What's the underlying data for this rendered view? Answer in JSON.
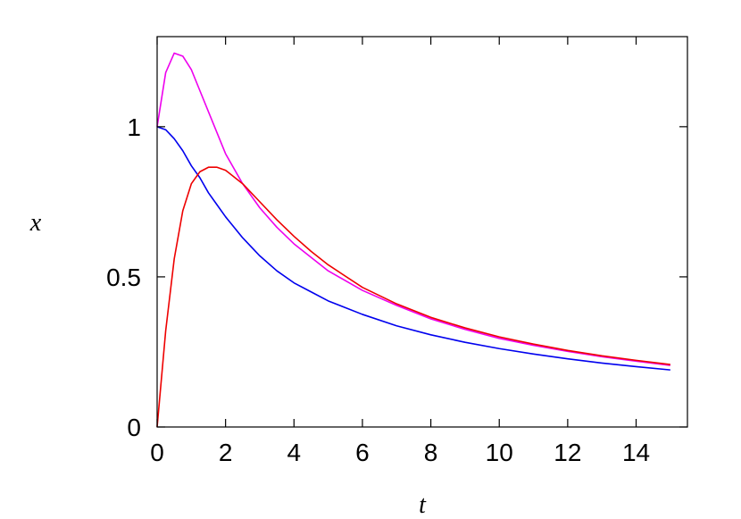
{
  "chart_data": {
    "type": "line",
    "title": "",
    "xlabel": "t",
    "ylabel": "x",
    "xlim": [
      0,
      15.5
    ],
    "ylim": [
      0,
      1.3
    ],
    "grid": false,
    "legend": "none",
    "x_ticks": [
      "0",
      "2",
      "4",
      "6",
      "8",
      "10",
      "12",
      "14"
    ],
    "y_ticks": [
      "0",
      "0.5",
      "1"
    ],
    "x_tick_values": [
      0,
      2,
      4,
      6,
      8,
      10,
      12,
      14
    ],
    "y_tick_values": [
      0,
      0.5,
      1
    ],
    "x": [
      0,
      0.25,
      0.5,
      0.75,
      1,
      1.25,
      1.5,
      1.75,
      2,
      2.5,
      3,
      3.5,
      4,
      4.5,
      5,
      6,
      7,
      8,
      9,
      10,
      11,
      12,
      13,
      14,
      15
    ],
    "series": [
      {
        "color": "#0000ee",
        "values": [
          1.0,
          0.99,
          0.96,
          0.92,
          0.87,
          0.83,
          0.78,
          0.74,
          0.7,
          0.63,
          0.57,
          0.52,
          0.48,
          0.45,
          0.42,
          0.375,
          0.337,
          0.307,
          0.282,
          0.261,
          0.243,
          0.227,
          0.213,
          0.201,
          0.19
        ]
      },
      {
        "color": "#ee00ee",
        "values": [
          1.0,
          1.18,
          1.245,
          1.235,
          1.19,
          1.12,
          1.05,
          0.98,
          0.91,
          0.81,
          0.73,
          0.665,
          0.61,
          0.565,
          0.52,
          0.455,
          0.405,
          0.36,
          0.325,
          0.295,
          0.272,
          0.252,
          0.234,
          0.219,
          0.205
        ]
      },
      {
        "color": "#ee0000",
        "values": [
          0.0,
          0.32,
          0.56,
          0.72,
          0.81,
          0.85,
          0.865,
          0.865,
          0.855,
          0.81,
          0.75,
          0.69,
          0.635,
          0.585,
          0.54,
          0.465,
          0.41,
          0.365,
          0.33,
          0.3,
          0.276,
          0.255,
          0.237,
          0.222,
          0.208
        ]
      }
    ]
  }
}
